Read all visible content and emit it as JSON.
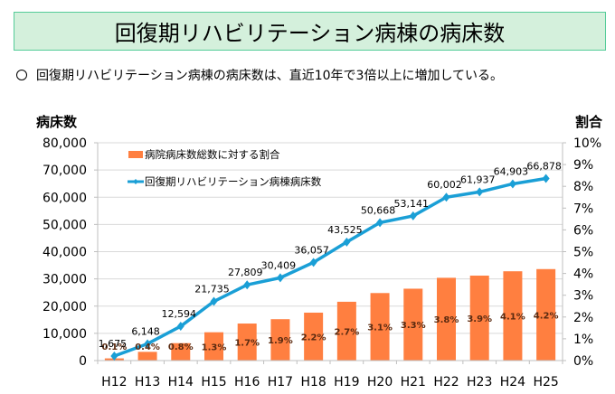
{
  "header": {
    "title": "回復期リハビリテーション病棟の病床数"
  },
  "summary": {
    "text": "回復期リハビリテーション病棟の病床数は、直近10年で3倍以上に増加している。"
  },
  "colors": {
    "title_bg": "#d4f0dc",
    "title_border": "#55cc99",
    "bar": "#ff7f40",
    "line": "#1a9fd6",
    "grid": "#d9d9d9"
  },
  "chart_data": {
    "type": "bar+line",
    "title": "",
    "categories": [
      "H12",
      "H13",
      "H14",
      "H15",
      "H16",
      "H17",
      "H18",
      "H19",
      "H20",
      "H21",
      "H22",
      "H23",
      "H24",
      "H25"
    ],
    "series": [
      {
        "name": "病院病床数総数に対する割合",
        "type": "bar",
        "axis": "right",
        "values": [
          0.1,
          0.4,
          0.8,
          1.3,
          1.7,
          1.9,
          2.2,
          2.7,
          3.1,
          3.3,
          3.8,
          3.9,
          4.1,
          4.2
        ],
        "labels": [
          "0.1%",
          "0.4%",
          "0.8%",
          "1.3%",
          "1.7%",
          "1.9%",
          "2.2%",
          "2.7%",
          "3.1%",
          "3.3%",
          "3.8%",
          "3.9%",
          "4.1%",
          "4.2%"
        ]
      },
      {
        "name": "回復期リハビリテーション病棟病床数",
        "type": "line",
        "axis": "left",
        "values": [
          1675,
          6148,
          12594,
          21735,
          27809,
          30409,
          36057,
          43525,
          50668,
          53141,
          60002,
          61937,
          64903,
          66878
        ],
        "labels": [
          "1,675",
          "6,148",
          "12,594",
          "21,735",
          "27,809",
          "30,409",
          "36,057",
          "43,525",
          "50,668",
          "53,141",
          "60,002",
          "61,937",
          "64,903",
          "66,878"
        ]
      }
    ],
    "ylabel_left": "病床数",
    "ylabel_right": "割合",
    "ylim_left": [
      0,
      80000
    ],
    "ylim_right": [
      0,
      10
    ],
    "yticks_left": [
      "0",
      "10,000",
      "20,000",
      "30,000",
      "40,000",
      "50,000",
      "60,000",
      "70,000",
      "80,000"
    ],
    "yticks_right": [
      "0%",
      "1%",
      "2%",
      "3%",
      "4%",
      "5%",
      "6%",
      "7%",
      "8%",
      "9%",
      "10%"
    ],
    "grid": true,
    "legend_position": "top-left"
  }
}
